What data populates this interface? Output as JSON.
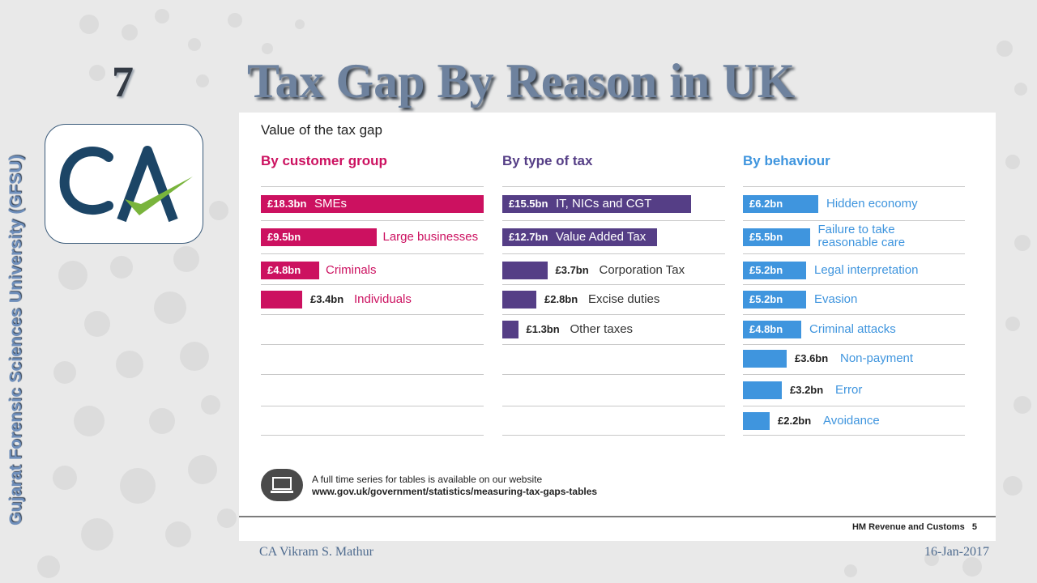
{
  "slide": {
    "number": "7",
    "title": "Tax Gap By Reason in UK",
    "sidebar_text": "Gujarat Forensic Sciences University (GFSU)",
    "author": "CA Vikram S. Mathur",
    "date": "16-Jan-2017"
  },
  "logo": {
    "text": "CA",
    "check_color": "#79b43c",
    "letter_color": "#1c4566"
  },
  "panel": {
    "title": "Value of the tax gap",
    "footnote_line1": "A full time series for tables is available on our website",
    "footnote_line2": "www.gov.uk/government/statistics/measuring-tax-gaps-tables",
    "source": "HM Revenue and Customs",
    "page": "5"
  },
  "chart_data": [
    {
      "type": "bar",
      "title": "By customer group",
      "color": "#cc1160",
      "categories": [
        "SMEs",
        "Large businesses",
        "Criminals",
        "Individuals"
      ],
      "values": [
        18.3,
        9.5,
        4.8,
        3.4
      ],
      "value_labels": [
        "£18.3bn",
        "£9.5bn",
        "£4.8bn",
        "£3.4bn"
      ]
    },
    {
      "type": "bar",
      "title": "By type of tax",
      "color": "#553e86",
      "categories": [
        "IT, NICs and CGT",
        "Value Added Tax",
        "Corporation Tax",
        "Excise duties",
        "Other taxes"
      ],
      "values": [
        15.5,
        12.7,
        3.7,
        2.8,
        1.3
      ],
      "value_labels": [
        "£15.5bn",
        "£12.7bn",
        "£3.7bn",
        "£2.8bn",
        "£1.3bn"
      ]
    },
    {
      "type": "bar",
      "title": "By behaviour",
      "color": "#3f95de",
      "categories": [
        "Hidden economy",
        "Failure to take reasonable care",
        "Legal interpretation",
        "Evasion",
        "Criminal attacks",
        "Non-payment",
        "Error",
        "Avoidance"
      ],
      "values": [
        6.2,
        5.5,
        5.2,
        5.2,
        4.8,
        3.6,
        3.2,
        2.2
      ],
      "value_labels": [
        "£6.2bn",
        "£5.5bn",
        "£5.2bn",
        "£5.2bn",
        "£4.8bn",
        "£3.6bn",
        "£3.2bn",
        "£2.2bn"
      ]
    }
  ]
}
